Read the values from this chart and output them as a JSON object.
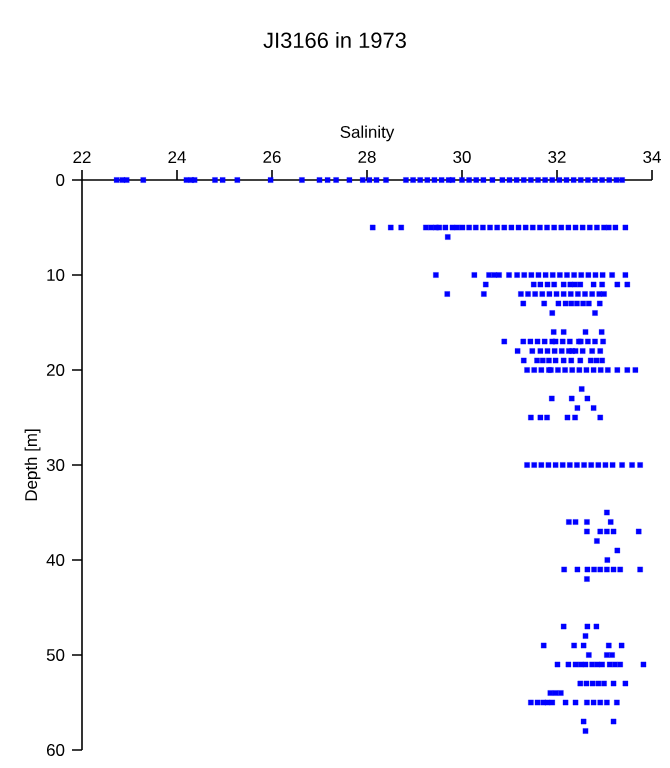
{
  "chart_data": {
    "type": "scatter",
    "title": "JI3166 in 1973",
    "xlabel": "Salinity",
    "ylabel": "Depth [m]",
    "xlim": [
      22,
      34
    ],
    "xticks": [
      22,
      24,
      26,
      28,
      30,
      32,
      34
    ],
    "ylim": [
      60,
      0
    ],
    "yticks": [
      0,
      10,
      20,
      30,
      40,
      50,
      60
    ],
    "marker": "square",
    "color": "#0000ff",
    "x": [
      22.73,
      22.85,
      22.94,
      23.29,
      24.2,
      24.3,
      24.37,
      24.8,
      24.96,
      25.27,
      25.97,
      26.63,
      27.0,
      27.17,
      27.35,
      27.63,
      27.91,
      28.05,
      28.2,
      28.4,
      28.82,
      28.97,
      29.12,
      29.27,
      29.42,
      29.57,
      29.72,
      29.8,
      30.0,
      30.15,
      30.3,
      30.45,
      30.64,
      30.85,
      31.0,
      31.15,
      31.3,
      31.45,
      31.6,
      31.75,
      31.9,
      32.05,
      32.2,
      32.35,
      32.5,
      32.65,
      32.8,
      32.95,
      33.1,
      33.25,
      33.37,
      28.12,
      28.5,
      28.72,
      29.24,
      29.35,
      29.45,
      29.52,
      29.65,
      29.8,
      29.9,
      30.01,
      30.15,
      30.29,
      30.44,
      30.59,
      30.74,
      30.89,
      31.04,
      31.19,
      31.34,
      31.49,
      31.64,
      31.79,
      31.94,
      32.09,
      32.24,
      32.39,
      32.54,
      32.69,
      32.84,
      32.99,
      33.09,
      33.23,
      33.44,
      29.7,
      29.45,
      30.26,
      30.57,
      30.68,
      30.78,
      30.99,
      31.16,
      31.31,
      31.46,
      31.61,
      31.76,
      31.91,
      32.06,
      32.21,
      32.36,
      32.51,
      32.66,
      32.81,
      32.96,
      33.16,
      33.44,
      30.5,
      31.51,
      31.65,
      31.8,
      31.94,
      32.14,
      32.28,
      32.38,
      32.49,
      32.77,
      32.95,
      33.27,
      33.48,
      29.69,
      30.46,
      31.24,
      31.39,
      31.54,
      31.69,
      31.84,
      31.99,
      32.14,
      32.29,
      32.44,
      32.59,
      32.74,
      32.89,
      32.99,
      31.29,
      31.73,
      32.03,
      32.18,
      32.3,
      32.42,
      32.55,
      32.67,
      32.9,
      31.9,
      32.8,
      31.93,
      32.14,
      32.6,
      32.94,
      30.89,
      31.29,
      31.44,
      31.59,
      31.74,
      31.9,
      31.97,
      32.12,
      32.27,
      32.46,
      32.5,
      32.65,
      32.8,
      32.97,
      31.17,
      31.48,
      31.65,
      31.8,
      31.95,
      32.1,
      32.25,
      32.32,
      32.39,
      32.54,
      32.74,
      32.91,
      31.3,
      31.58,
      31.7,
      31.83,
      31.97,
      32.14,
      32.3,
      32.49,
      32.71,
      32.83,
      32.95,
      31.37,
      31.52,
      31.67,
      31.83,
      31.87,
      32.02,
      32.17,
      32.32,
      32.47,
      32.62,
      32.77,
      32.92,
      33.07,
      33.27,
      33.48,
      33.65,
      32.52,
      31.89,
      32.31,
      32.64,
      32.43,
      32.77,
      31.45,
      31.65,
      31.79,
      32.22,
      32.38,
      32.91,
      31.37,
      31.52,
      31.67,
      31.82,
      31.97,
      32.12,
      32.27,
      32.42,
      32.57,
      32.72,
      32.87,
      33.02,
      33.17,
      33.37,
      33.58,
      33.75,
      33.05,
      32.25,
      32.39,
      32.63,
      33.13,
      32.63,
      32.91,
      33.05,
      33.19,
      33.72,
      32.84,
      33.27,
      33.06,
      32.15,
      32.43,
      32.64,
      32.78,
      32.91,
      33.05,
      33.19,
      33.33,
      33.75,
      32.63,
      32.14,
      32.64,
      32.83,
      32.6,
      31.72,
      32.36,
      32.56,
      33.09,
      33.36,
      32.67,
      33.05,
      33.16,
      32.01,
      32.24,
      32.39,
      32.5,
      32.6,
      32.74,
      32.85,
      32.95,
      33.11,
      33.22,
      33.33,
      33.82,
      32.49,
      32.62,
      32.75,
      32.87,
      32.99,
      33.19,
      33.44,
      31.86,
      31.97,
      32.08,
      31.45,
      31.59,
      31.71,
      31.8,
      31.9,
      32.18,
      32.39,
      32.63,
      32.77,
      32.91,
      33.05,
      33.26,
      32.56,
      33.19,
      32.6
    ],
    "values": [
      0,
      0,
      0,
      0,
      0,
      0,
      0,
      0,
      0,
      0,
      0,
      0,
      0,
      0,
      0,
      0,
      0,
      0,
      0,
      0,
      0,
      0,
      0,
      0,
      0,
      0,
      0,
      0,
      0,
      0,
      0,
      0,
      0,
      0,
      0,
      0,
      0,
      0,
      0,
      0,
      0,
      0,
      0,
      0,
      0,
      0,
      0,
      0,
      0,
      0,
      0,
      5,
      5,
      5,
      5,
      5,
      5,
      5,
      5,
      5,
      5,
      5,
      5,
      5,
      5,
      5,
      5,
      5,
      5,
      5,
      5,
      5,
      5,
      5,
      5,
      5,
      5,
      5,
      5,
      5,
      5,
      5,
      5,
      5,
      5,
      6,
      10,
      10,
      10,
      10,
      10,
      10,
      10,
      10,
      10,
      10,
      10,
      10,
      10,
      10,
      10,
      10,
      10,
      10,
      10,
      10,
      10,
      11,
      11,
      11,
      11,
      11,
      11,
      11,
      11,
      11,
      11,
      11,
      11,
      11,
      12,
      12,
      12,
      12,
      12,
      12,
      12,
      12,
      12,
      12,
      12,
      12,
      12,
      12,
      12,
      13,
      13,
      13,
      13,
      13,
      13,
      13,
      13,
      13,
      14,
      14,
      16,
      16,
      16,
      16,
      17,
      17,
      17,
      17,
      17,
      17,
      17,
      17,
      17,
      17,
      17,
      17,
      17,
      17,
      18,
      18,
      18,
      18,
      18,
      18,
      18,
      18,
      18,
      18,
      18,
      18,
      19,
      19,
      19,
      19,
      19,
      19,
      19,
      19,
      19,
      19,
      19,
      20,
      20,
      20,
      20,
      20,
      20,
      20,
      20,
      20,
      20,
      20,
      20,
      20,
      20,
      20,
      20,
      22,
      23,
      23,
      23,
      24,
      24,
      25,
      25,
      25,
      25,
      25,
      25,
      30,
      30,
      30,
      30,
      30,
      30,
      30,
      30,
      30,
      30,
      30,
      30,
      30,
      30,
      30,
      30,
      35,
      36,
      36,
      36,
      36,
      37,
      37,
      37,
      37,
      37,
      38,
      39,
      40,
      41,
      41,
      41,
      41,
      41,
      41,
      41,
      41,
      41,
      42,
      47,
      47,
      47,
      48,
      49,
      49,
      49,
      49,
      49,
      50,
      50,
      50,
      51,
      51,
      51,
      51,
      51,
      51,
      51,
      51,
      51,
      51,
      51,
      51,
      53,
      53,
      53,
      53,
      53,
      53,
      53,
      54,
      54,
      54,
      55,
      55,
      55,
      55,
      55,
      55,
      55,
      55,
      55,
      55,
      55,
      55,
      57,
      57,
      58
    ]
  }
}
